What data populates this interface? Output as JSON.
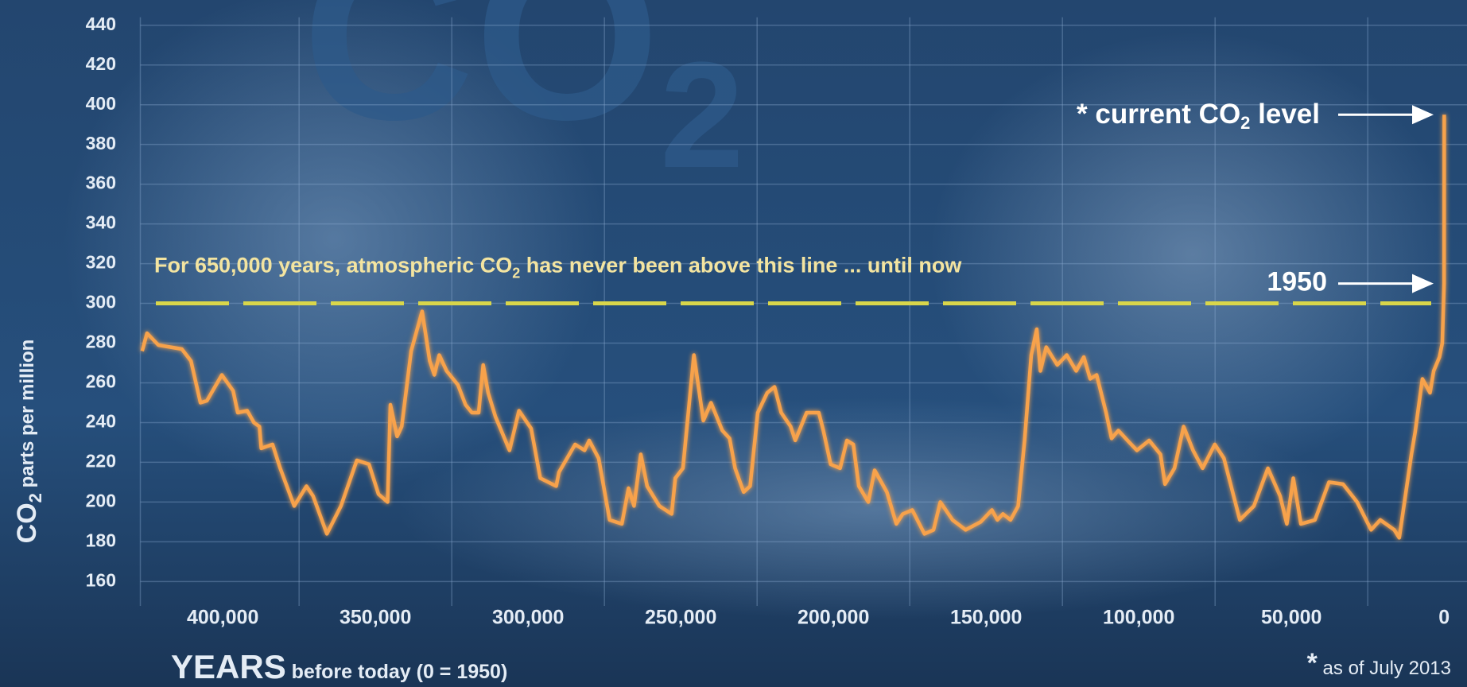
{
  "chart_data": {
    "type": "line",
    "watermark": [
      "CO",
      "2"
    ],
    "ylabel": [
      "CO",
      "2",
      " parts per million"
    ],
    "xlabel": [
      "YEARS",
      " before today (0 = 1950)"
    ],
    "threshold": 300,
    "threshold_text": [
      "For 650,000 years, atmospheric CO",
      "2",
      " has never been above this line ... until now"
    ],
    "current_label": [
      "* current CO",
      "2",
      " level"
    ],
    "label_1950": "1950",
    "footnote": [
      "*",
      " as of July 2013"
    ],
    "color": "#f7a24c",
    "grid": true,
    "xlim": [
      427000,
      -7500
    ],
    "ylim": [
      150,
      450
    ],
    "yticks": [
      160,
      180,
      200,
      220,
      240,
      260,
      280,
      300,
      320,
      340,
      360,
      380,
      400,
      420,
      440
    ],
    "xticks": [
      {
        "value": 400000,
        "label": "400,000"
      },
      {
        "value": 350000,
        "label": "350,000"
      },
      {
        "value": 300000,
        "label": "300,000"
      },
      {
        "value": 250000,
        "label": "250,000"
      },
      {
        "value": 200000,
        "label": "200,000"
      },
      {
        "value": 150000,
        "label": "150,000"
      },
      {
        "value": 100000,
        "label": "100,000"
      },
      {
        "value": 50000,
        "label": "50,000"
      },
      0
    ],
    "xgrid": [
      375000,
      325000,
      275000,
      225000,
      175000,
      125000,
      75000,
      25000
    ],
    "x": [
      426400,
      424800,
      421100,
      413400,
      410400,
      407300,
      405200,
      400300,
      396600,
      395100,
      392000,
      389800,
      388000,
      387400,
      383700,
      381200,
      376600,
      372600,
      370400,
      365900,
      361300,
      356100,
      352100,
      349000,
      346000,
      345100,
      342900,
      341400,
      338300,
      334700,
      332200,
      330700,
      329100,
      326700,
      323000,
      320500,
      318400,
      316200,
      314700,
      313100,
      310700,
      306100,
      303000,
      299000,
      296000,
      290800,
      289900,
      284600,
      281500,
      280000,
      276900,
      273300,
      269300,
      267100,
      265300,
      263100,
      261000,
      257000,
      253000,
      251800,
      249300,
      245700,
      242600,
      240100,
      236400,
      234000,
      232200,
      229400,
      227300,
      224800,
      221700,
      219300,
      217100,
      214000,
      212500,
      208800,
      204800,
      203300,
      200900,
      197800,
      195600,
      193500,
      191700,
      188600,
      186500,
      182500,
      179400,
      177300,
      174200,
      170200,
      167200,
      165000,
      161000,
      156700,
      151800,
      148100,
      146300,
      144500,
      142000,
      139500,
      137400,
      135200,
      133400,
      132200,
      130300,
      126700,
      123600,
      120500,
      118000,
      115900,
      113800,
      110700,
      108900,
      106700,
      103700,
      100600,
      96600,
      92900,
      91400,
      88300,
      85300,
      82200,
      79100,
      75100,
      72100,
      66900,
      62300,
      57700,
      53700,
      51500,
      49400,
      46900,
      42300,
      37700,
      33100,
      28500,
      23900,
      20900,
      16300,
      14700,
      10700,
      9500,
      7100,
      4600,
      3400,
      1500,
      600,
      0,
      -63
    ],
    "values": [
      276,
      285,
      279,
      277,
      271,
      250,
      251,
      264,
      256,
      245,
      246,
      240,
      238,
      227,
      229,
      217,
      198,
      208,
      203,
      184,
      198,
      221,
      219,
      204,
      200,
      249,
      233,
      238,
      276,
      296,
      271,
      264,
      274,
      266,
      259,
      249,
      245,
      245,
      269,
      255,
      243,
      226,
      246,
      237,
      212,
      208,
      215,
      229,
      226,
      231,
      222,
      191,
      189,
      207,
      198,
      224,
      208,
      198,
      194,
      212,
      217,
      274,
      241,
      250,
      236,
      232,
      217,
      205,
      208,
      245,
      255,
      258,
      245,
      238,
      231,
      245,
      245,
      236,
      219,
      217,
      231,
      229,
      208,
      200,
      216,
      205,
      189,
      194,
      196,
      184,
      186,
      200,
      191,
      186,
      190,
      196,
      191,
      194,
      191,
      198,
      231,
      274,
      287,
      266,
      278,
      269,
      274,
      266,
      273,
      262,
      264,
      245,
      232,
      236,
      231,
      226,
      231,
      224,
      209,
      217,
      238,
      226,
      217,
      229,
      222,
      191,
      198,
      217,
      203,
      189,
      212,
      189,
      191,
      210,
      209,
      200,
      186,
      191,
      186,
      182,
      224,
      235,
      262,
      255,
      266,
      273,
      280,
      310,
      395
    ]
  }
}
